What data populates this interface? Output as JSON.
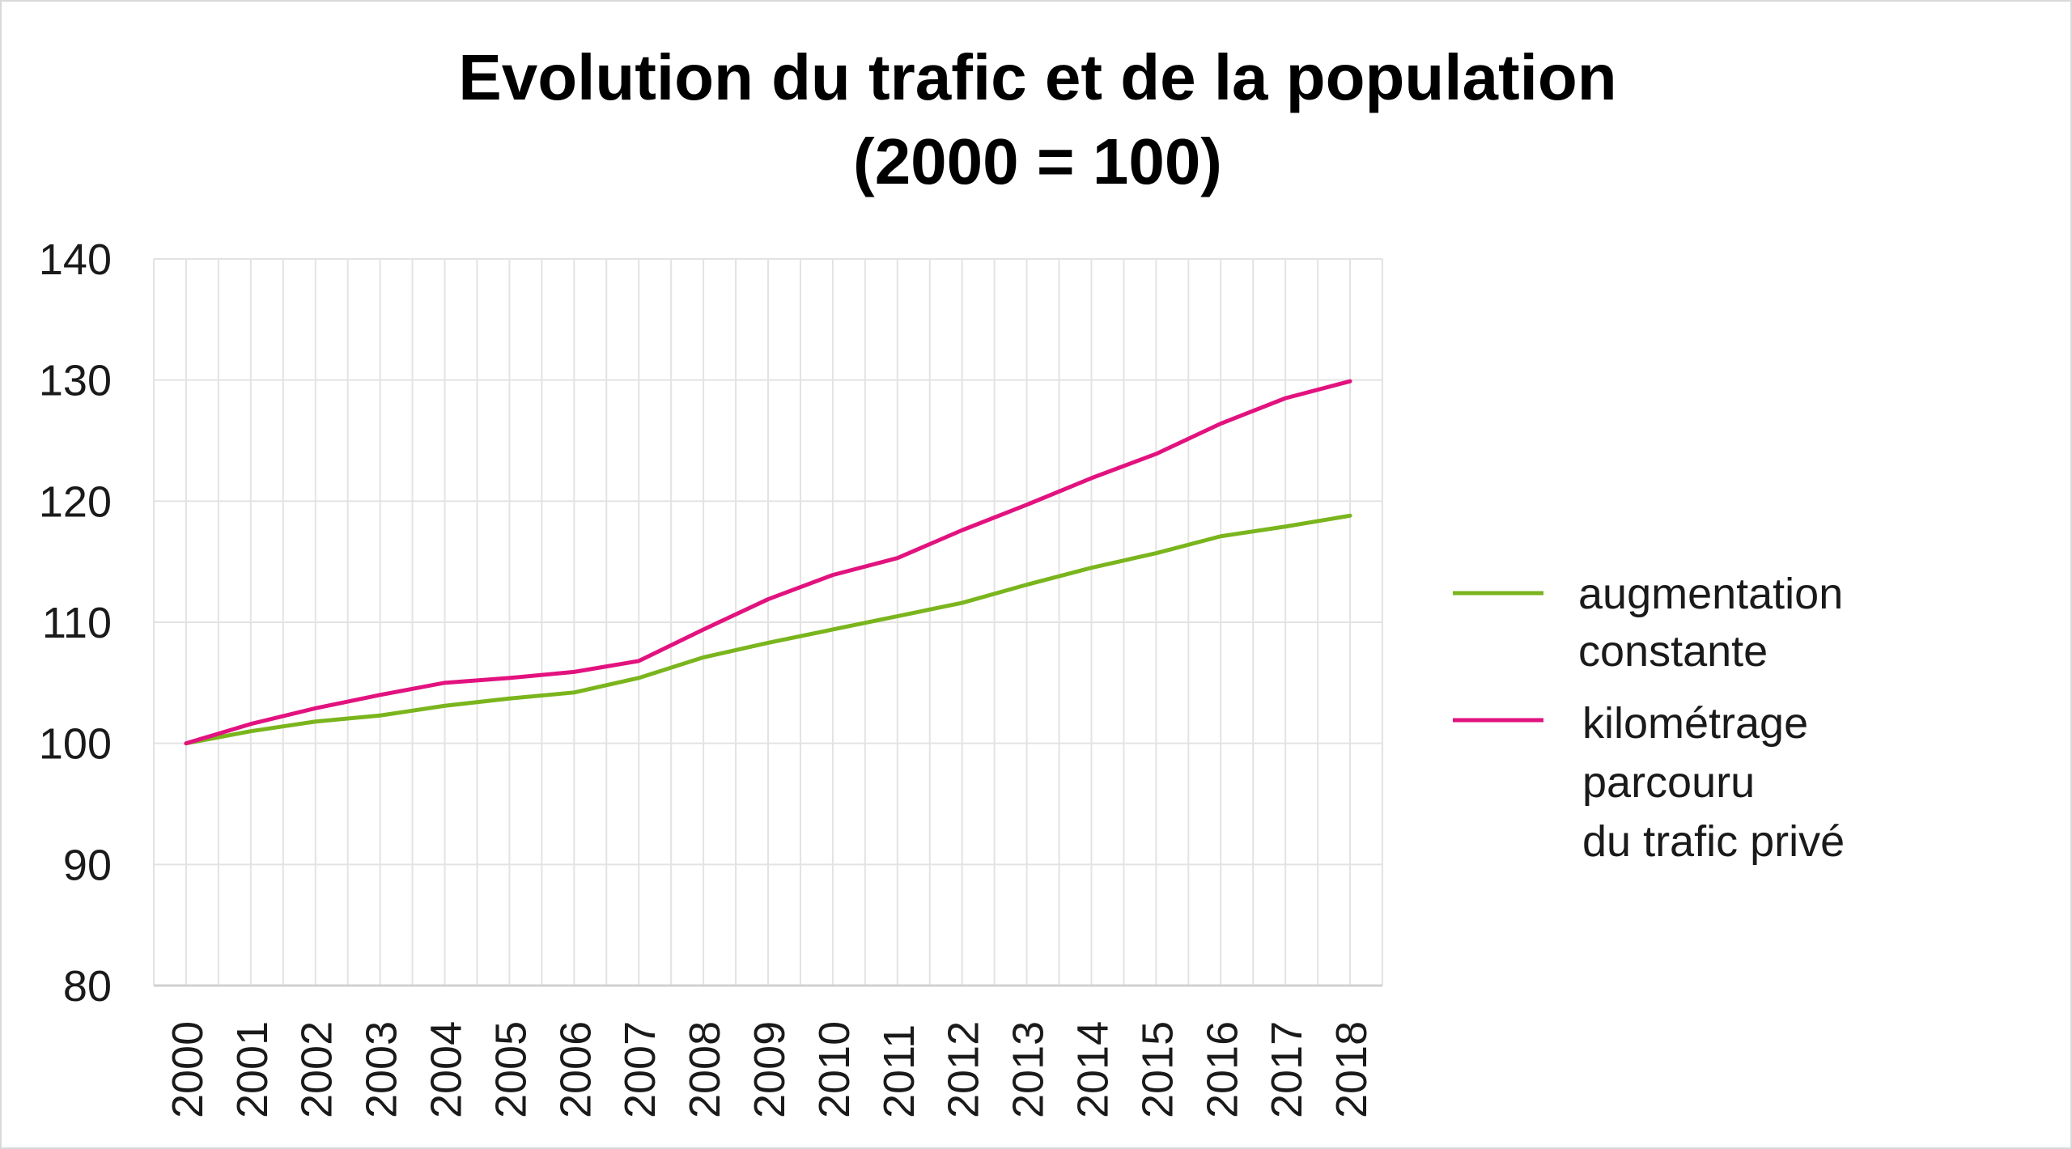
{
  "chart_data": {
    "type": "line",
    "title": [
      "Evolution du trafic et de la population",
      "(2000 = 100)"
    ],
    "xlabel": "",
    "ylabel": "",
    "x": [
      "2000",
      "2001",
      "2002",
      "2003",
      "2004",
      "2005",
      "2006",
      "2007",
      "2008",
      "2009",
      "2010",
      "2011",
      "2012",
      "2013",
      "2014",
      "2015",
      "2016",
      "2017",
      "2018"
    ],
    "ylim": [
      80,
      140
    ],
    "yticks": [
      "80",
      "90",
      "100",
      "110",
      "120",
      "130",
      "140"
    ],
    "grid": true,
    "legend_position": "right",
    "series": [
      {
        "name": [
          "augmentation",
          "constante"
        ],
        "color": "#7ab51d",
        "values": [
          100,
          101,
          101.8,
          102.3,
          103.1,
          103.7,
          104.2,
          105.4,
          107.1,
          108.3,
          109.4,
          110.5,
          111.6,
          113.1,
          114.5,
          115.7,
          117.1,
          117.9,
          118.8
        ]
      },
      {
        "name": [
          "kilométrage",
          "parcouru",
          "du trafic privé"
        ],
        "color": "#e2127f",
        "values": [
          100,
          101.6,
          102.9,
          104,
          105,
          105.4,
          105.9,
          106.8,
          109.4,
          111.9,
          113.9,
          115.3,
          117.6,
          119.7,
          121.9,
          123.9,
          126.4,
          128.5,
          129.9
        ]
      }
    ]
  }
}
